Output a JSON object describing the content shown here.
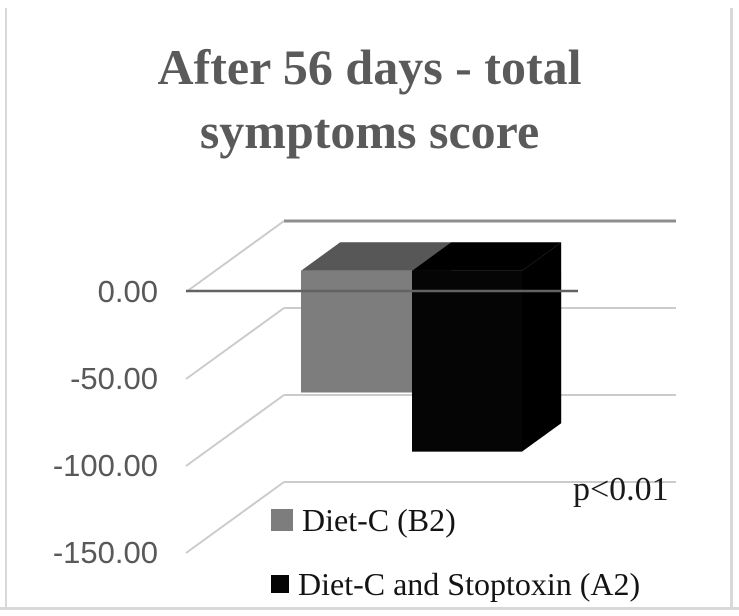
{
  "chart_data": {
    "type": "bar",
    "projection": "3d",
    "title": "After 56 days - total symptoms score",
    "title_lines": [
      "After 56 days - total",
      "symptoms score"
    ],
    "xlabel": "",
    "ylabel": "",
    "categories": [
      ""
    ],
    "series": [
      {
        "id": "diet-c-b2",
        "name": "Diet-C (B2)",
        "values": [
          -70
        ],
        "color": "#7d7d7d",
        "shade": "#575757"
      },
      {
        "id": "diet-c-and-stoptoxin-a2",
        "name": "Diet-C and Stoptoxin (A2)",
        "values": [
          -104
        ],
        "color": "#050505",
        "shade": "#000000"
      }
    ],
    "yticks": [
      {
        "value": 0,
        "label": "0.00"
      },
      {
        "value": -50,
        "label": "-50.00"
      },
      {
        "value": -100,
        "label": "-100.00"
      },
      {
        "value": -150,
        "label": "-150.00"
      }
    ],
    "ylim": [
      -150,
      0
    ],
    "grid": true,
    "legend_position": "bottom",
    "annotation": "p<0.01"
  },
  "colors": {
    "title_text": "#5a5a5a",
    "axis_text": "#595959",
    "legend_text": "#131313",
    "gridline_light": "#cbcbcb",
    "zero_line_back": "#8e8e8e",
    "zero_line_front": "#636363",
    "panel_border": "#d9d9d9"
  }
}
